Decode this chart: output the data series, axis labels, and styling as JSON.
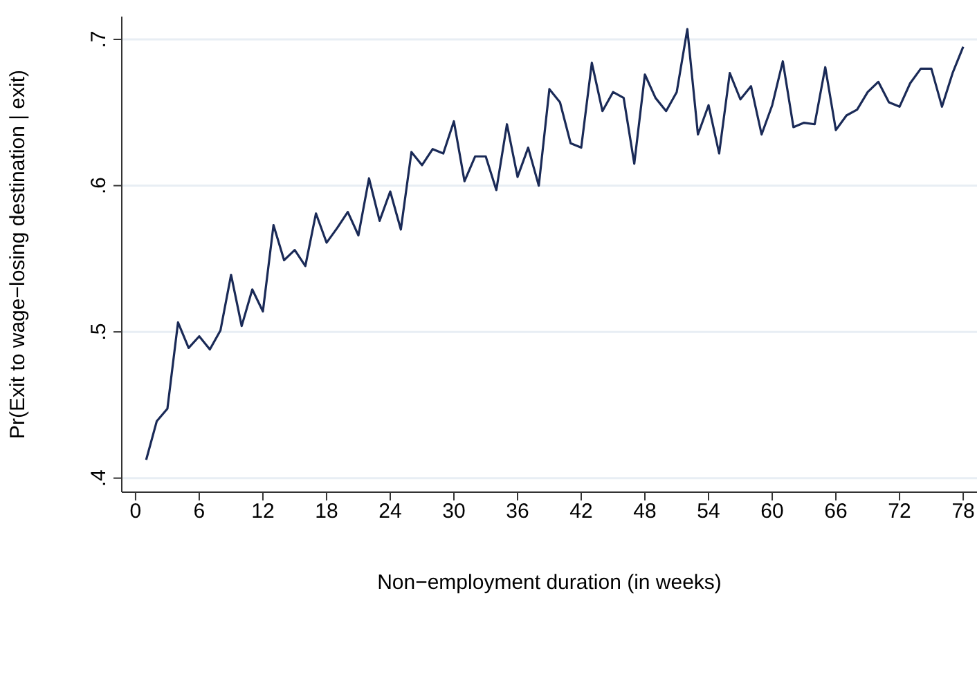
{
  "chart_data": {
    "type": "line",
    "xlabel": "Non−employment duration (in weeks)",
    "ylabel": "Pr(Exit to wage−losing destination | exit)",
    "x": [
      1,
      2,
      3,
      4,
      5,
      6,
      7,
      8,
      9,
      10,
      11,
      12,
      13,
      14,
      15,
      16,
      17,
      18,
      19,
      20,
      21,
      22,
      23,
      24,
      25,
      26,
      27,
      28,
      29,
      30,
      31,
      32,
      33,
      34,
      35,
      36,
      37,
      38,
      39,
      40,
      41,
      42,
      43,
      44,
      45,
      46,
      47,
      48,
      49,
      50,
      51,
      52,
      53,
      54,
      55,
      56,
      57,
      58,
      59,
      60,
      61,
      62,
      63,
      64,
      65,
      66,
      67,
      68,
      69,
      70,
      71,
      72,
      73,
      74,
      75,
      76,
      77,
      78
    ],
    "series": [
      {
        "color": "#1a2a57",
        "values": [
          0.4125,
          0.439,
          0.4475,
          0.5065,
          0.489,
          0.497,
          0.488,
          0.501,
          0.539,
          0.504,
          0.529,
          0.514,
          0.573,
          0.549,
          0.556,
          0.545,
          0.581,
          0.561,
          0.571,
          0.582,
          0.566,
          0.605,
          0.576,
          0.596,
          0.57,
          0.623,
          0.614,
          0.625,
          0.622,
          0.644,
          0.603,
          0.62,
          0.62,
          0.597,
          0.642,
          0.606,
          0.626,
          0.6,
          0.666,
          0.657,
          0.629,
          0.626,
          0.684,
          0.651,
          0.664,
          0.66,
          0.615,
          0.676,
          0.66,
          0.651,
          0.664,
          0.707,
          0.635,
          0.655,
          0.622,
          0.677,
          0.659,
          0.668,
          0.635,
          0.655,
          0.685,
          0.64,
          0.643,
          0.642,
          0.681,
          0.638,
          0.648,
          0.652,
          0.664,
          0.671,
          0.657,
          0.654,
          0.67,
          0.68,
          0.68,
          0.654,
          0.677,
          0.695
        ]
      }
    ],
    "xlim": [
      -1.3,
      79.3
    ],
    "xticks": [
      0,
      6,
      12,
      18,
      24,
      30,
      36,
      42,
      48,
      54,
      60,
      66,
      72,
      78
    ],
    "ylim": [
      0.3904,
      0.7156
    ],
    "yticks": [
      {
        "value": 0.4,
        "label": ".4"
      },
      {
        "value": 0.5,
        "label": ".5"
      },
      {
        "value": 0.6,
        "label": ".6"
      },
      {
        "value": 0.7,
        "label": ".7"
      }
    ],
    "grid": "y",
    "legend": false,
    "marker": "none",
    "line_style": "solid"
  }
}
